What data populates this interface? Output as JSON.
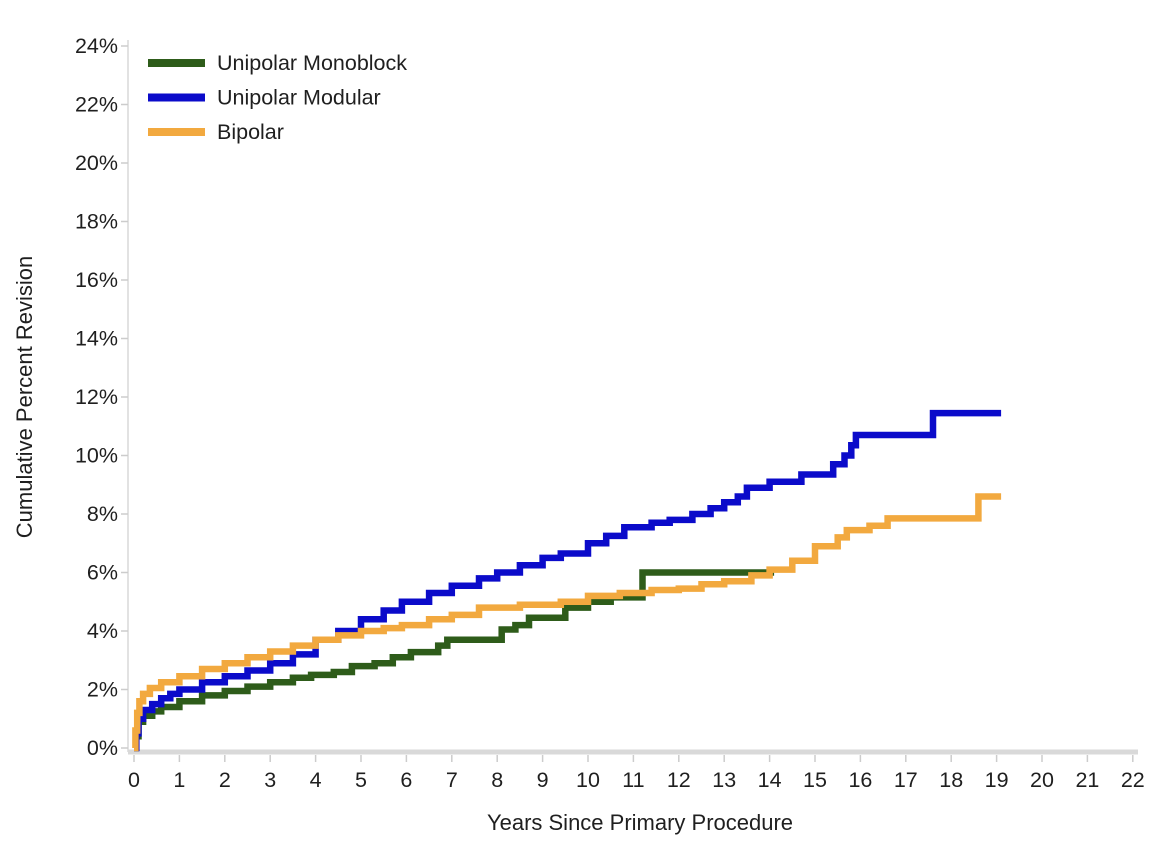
{
  "chart_data": {
    "type": "line",
    "subtype": "kaplan-meier-step",
    "title": "",
    "xlabel": "Years Since Primary Procedure",
    "ylabel": "Cumulative Percent Revision",
    "xlim": [
      0,
      22
    ],
    "ylim": [
      0,
      24
    ],
    "x_ticks": [
      0,
      1,
      2,
      3,
      4,
      5,
      6,
      7,
      8,
      9,
      10,
      11,
      12,
      13,
      14,
      15,
      16,
      17,
      18,
      19,
      20,
      21,
      22
    ],
    "y_ticks": [
      0,
      2,
      4,
      6,
      8,
      10,
      12,
      14,
      16,
      18,
      20,
      22,
      24
    ],
    "y_tick_suffix": "%",
    "grid": "off",
    "legend_position": "top-left",
    "axis_line_color": "#d9d9d9",
    "tick_color": "#cccccc",
    "label_color": "#1f1f1f",
    "series": [
      {
        "name": "Unipolar Monoblock",
        "color": "#2e5c1a",
        "points": [
          [
            0,
            0
          ],
          [
            0.04,
            0.4
          ],
          [
            0.1,
            0.9
          ],
          [
            0.2,
            1.1
          ],
          [
            0.4,
            1.25
          ],
          [
            0.6,
            1.4
          ],
          [
            1,
            1.6
          ],
          [
            1.5,
            1.8
          ],
          [
            2,
            1.95
          ],
          [
            2.5,
            2.1
          ],
          [
            3,
            2.25
          ],
          [
            3.5,
            2.4
          ],
          [
            3.9,
            2.5
          ],
          [
            4.4,
            2.6
          ],
          [
            4.8,
            2.8
          ],
          [
            5.3,
            2.9
          ],
          [
            5.7,
            3.1
          ],
          [
            6.1,
            3.28
          ],
          [
            6.7,
            3.5
          ],
          [
            6.9,
            3.7
          ],
          [
            8.1,
            4.05
          ],
          [
            8.4,
            4.2
          ],
          [
            8.7,
            4.45
          ],
          [
            9.5,
            4.8
          ],
          [
            10,
            5.0
          ],
          [
            10.5,
            5.15
          ],
          [
            11.2,
            6.0
          ],
          [
            14.1,
            6.0
          ]
        ]
      },
      {
        "name": "Unipolar Modular",
        "color": "#0b0bca",
        "points": [
          [
            0,
            0
          ],
          [
            0.05,
            0.5
          ],
          [
            0.1,
            1.0
          ],
          [
            0.2,
            1.3
          ],
          [
            0.4,
            1.5
          ],
          [
            0.6,
            1.7
          ],
          [
            0.8,
            1.85
          ],
          [
            1,
            2.0
          ],
          [
            1.5,
            2.25
          ],
          [
            2,
            2.45
          ],
          [
            2.5,
            2.65
          ],
          [
            3,
            2.9
          ],
          [
            3.5,
            3.2
          ],
          [
            4,
            3.7
          ],
          [
            4.5,
            4.0
          ],
          [
            5,
            4.4
          ],
          [
            5.5,
            4.7
          ],
          [
            5.9,
            5.0
          ],
          [
            6.5,
            5.3
          ],
          [
            7,
            5.55
          ],
          [
            7.6,
            5.8
          ],
          [
            8,
            6.0
          ],
          [
            8.5,
            6.25
          ],
          [
            9,
            6.5
          ],
          [
            9.4,
            6.65
          ],
          [
            10,
            7.0
          ],
          [
            10.4,
            7.25
          ],
          [
            10.8,
            7.55
          ],
          [
            11.4,
            7.7
          ],
          [
            11.8,
            7.8
          ],
          [
            12.3,
            8.0
          ],
          [
            12.7,
            8.2
          ],
          [
            13,
            8.4
          ],
          [
            13.3,
            8.6
          ],
          [
            13.5,
            8.9
          ],
          [
            14,
            9.1
          ],
          [
            14.7,
            9.35
          ],
          [
            15.4,
            9.7
          ],
          [
            15.65,
            10.0
          ],
          [
            15.8,
            10.35
          ],
          [
            15.9,
            10.7
          ],
          [
            17.6,
            11.45
          ],
          [
            19.1,
            11.45
          ]
        ]
      },
      {
        "name": "Bipolar",
        "color": "#f2a93f",
        "points": [
          [
            0,
            0
          ],
          [
            0.03,
            0.6
          ],
          [
            0.07,
            1.2
          ],
          [
            0.12,
            1.6
          ],
          [
            0.2,
            1.85
          ],
          [
            0.35,
            2.05
          ],
          [
            0.6,
            2.25
          ],
          [
            1,
            2.45
          ],
          [
            1.5,
            2.7
          ],
          [
            2,
            2.9
          ],
          [
            2.5,
            3.1
          ],
          [
            3,
            3.3
          ],
          [
            3.5,
            3.5
          ],
          [
            4,
            3.7
          ],
          [
            4.5,
            3.85
          ],
          [
            5,
            4.0
          ],
          [
            5.5,
            4.1
          ],
          [
            5.9,
            4.2
          ],
          [
            6.5,
            4.4
          ],
          [
            7,
            4.55
          ],
          [
            7.6,
            4.8
          ],
          [
            8.5,
            4.9
          ],
          [
            9.4,
            5.0
          ],
          [
            10,
            5.2
          ],
          [
            10.7,
            5.3
          ],
          [
            11.4,
            5.4
          ],
          [
            12,
            5.45
          ],
          [
            12.5,
            5.6
          ],
          [
            13,
            5.7
          ],
          [
            13.6,
            5.9
          ],
          [
            14,
            6.1
          ],
          [
            14.5,
            6.4
          ],
          [
            15,
            6.9
          ],
          [
            15.5,
            7.2
          ],
          [
            15.7,
            7.45
          ],
          [
            16.2,
            7.6
          ],
          [
            16.6,
            7.85
          ],
          [
            18.6,
            8.6
          ],
          [
            19.1,
            8.6
          ]
        ]
      }
    ]
  }
}
